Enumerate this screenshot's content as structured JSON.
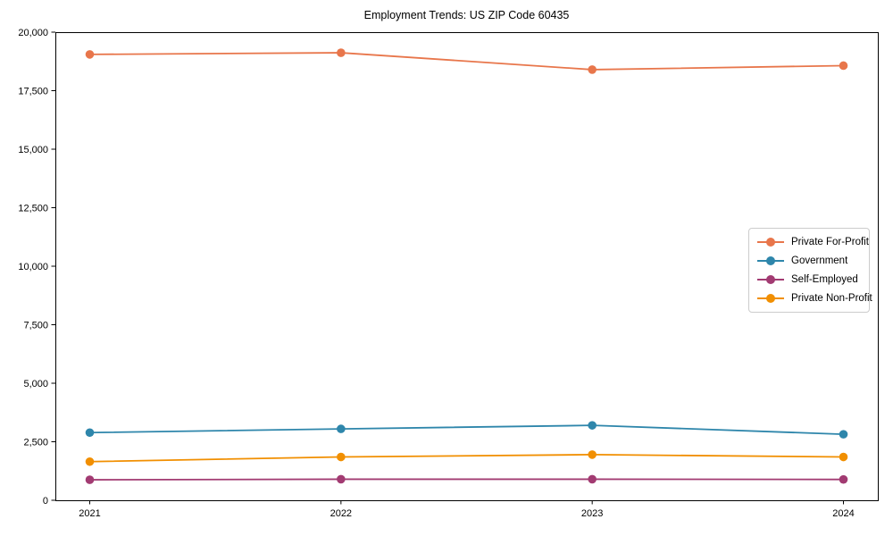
{
  "chart_data": {
    "type": "line",
    "title": "Employment Trends: US ZIP Code 60435",
    "x": [
      "2021",
      "2022",
      "2023",
      "2024"
    ],
    "series": [
      {
        "name": "Private For-Profit",
        "color": "#E8764B",
        "values": [
          19050,
          19120,
          18400,
          18570
        ]
      },
      {
        "name": "Government",
        "color": "#2E86AB",
        "values": [
          2890,
          3050,
          3200,
          2820
        ]
      },
      {
        "name": "Self-Employed",
        "color": "#A23B72",
        "values": [
          875,
          900,
          900,
          890
        ]
      },
      {
        "name": "Private Non-Profit",
        "color": "#F18F01",
        "values": [
          1650,
          1850,
          1950,
          1850
        ]
      }
    ],
    "ylim": [
      0,
      20000
    ],
    "yticks": [
      0,
      2500,
      5000,
      7500,
      10000,
      12500,
      15000,
      17500,
      20000
    ],
    "ytick_labels": [
      "0",
      "2,500",
      "5,000",
      "7,500",
      "10,000",
      "12,500",
      "15,000",
      "17,500",
      "20,000"
    ],
    "xlabel": "",
    "ylabel": "",
    "grid": false,
    "legend_position": "center-right",
    "marker": "circle",
    "spine_color": "#000000",
    "background_color": "#ffffff",
    "text_color": "#000000"
  }
}
